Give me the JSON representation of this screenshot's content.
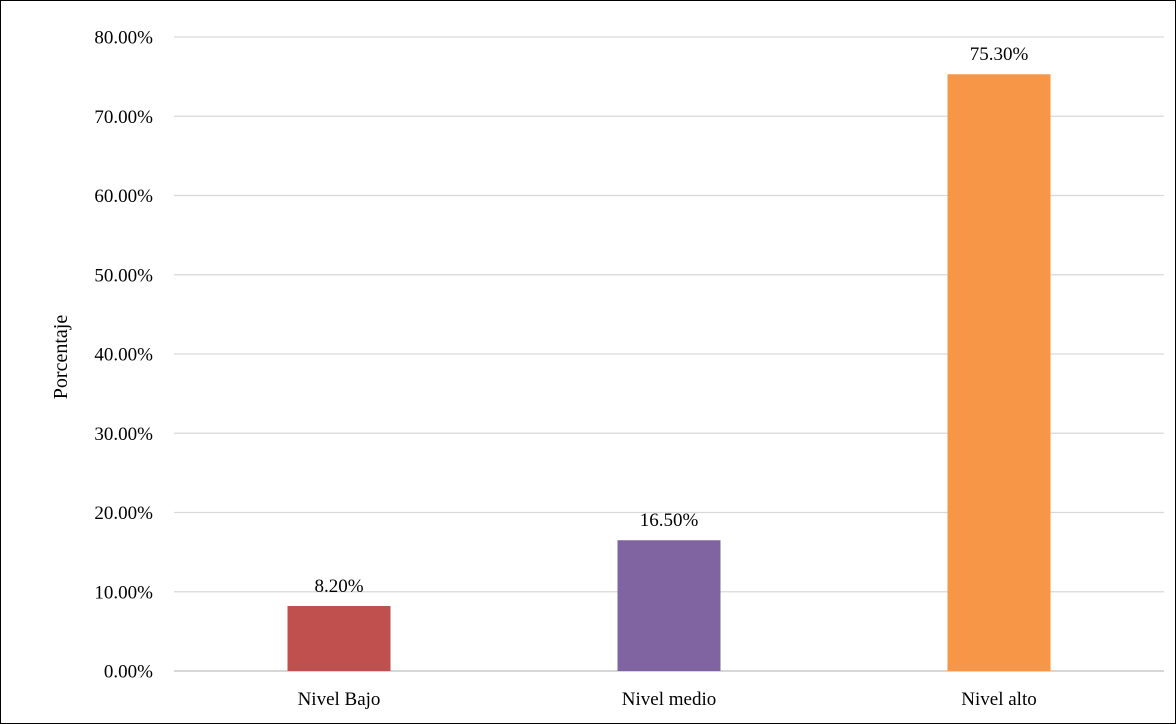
{
  "chart_data": {
    "type": "bar",
    "title": "",
    "xlabel": "",
    "ylabel": "Porcentaje",
    "categories": [
      "Nivel Bajo",
      "Nivel medio",
      "Nivel alto"
    ],
    "values": [
      8.2,
      16.5,
      75.3
    ],
    "data_labels": [
      "8.20%",
      "16.50%",
      "75.30%"
    ],
    "y_ticks": [
      "0.00%",
      "10.00%",
      "20.00%",
      "30.00%",
      "40.00%",
      "50.00%",
      "60.00%",
      "70.00%",
      "80.00%"
    ],
    "ylim": [
      0,
      80
    ],
    "grid": true,
    "legend": "none",
    "colors": [
      "#c0504d",
      "#8064a2",
      "#f79646"
    ]
  }
}
